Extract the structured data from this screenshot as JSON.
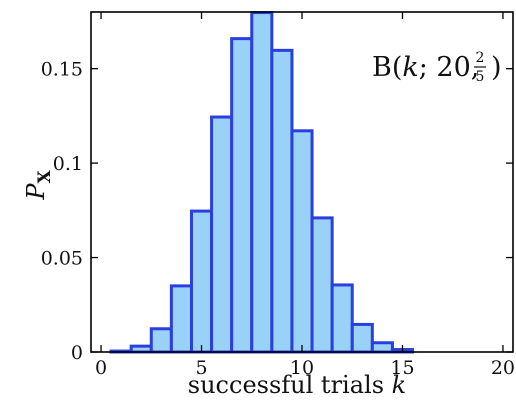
{
  "chart_data": {
    "type": "bar",
    "title": "",
    "xlabel": "successful trials",
    "xlabel_var": "k",
    "ylabel": "P",
    "ylabel_sub": "X",
    "x": [
      0,
      1,
      2,
      3,
      4,
      5,
      6,
      7,
      8,
      9,
      10,
      11,
      12,
      13,
      14,
      15,
      16,
      17,
      18,
      19,
      20
    ],
    "values": [
      4e-05,
      0.0005,
      0.0031,
      0.0123,
      0.035,
      0.0746,
      0.1244,
      0.1659,
      0.1797,
      0.1597,
      0.1171,
      0.071,
      0.0355,
      0.0146,
      0.0049,
      0.0013,
      0.0003,
      4e-05,
      0.0,
      0.0,
      0.0
    ],
    "xlim": [
      -0.5,
      20.5
    ],
    "ylim": [
      0,
      0.18
    ],
    "xticks": [
      "0",
      "5",
      "10",
      "15",
      "20"
    ],
    "yticks": [
      "0",
      "0.05",
      "0.1",
      "0.15"
    ],
    "grid": false,
    "bar_fill": "#99d1f7",
    "bar_edge": "#2a3fe0",
    "annotation": {
      "lead": "B(",
      "var": "k",
      "mid": "; 20, ",
      "frac_num": "2",
      "frac_den": "5",
      "tail": ")"
    }
  }
}
